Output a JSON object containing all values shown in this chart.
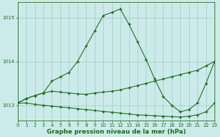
{
  "title": "Graphe pression niveau de la mer (hPa)",
  "xlim": [
    0,
    23
  ],
  "ylim": [
    1012.65,
    1015.35
  ],
  "yticks": [
    1013,
    1014,
    1015
  ],
  "xticks": [
    0,
    1,
    2,
    3,
    4,
    5,
    6,
    7,
    8,
    9,
    10,
    11,
    12,
    13,
    14,
    15,
    16,
    17,
    18,
    19,
    20,
    21,
    22,
    23
  ],
  "background_color": "#cceaea",
  "grid_color": "#99ccbb",
  "line_color": "#1a6b1a",
  "line1_y": [
    1013.05,
    1013.15,
    1013.22,
    1013.28,
    1013.55,
    1013.65,
    1013.75,
    1014.0,
    1014.35,
    1014.7,
    1015.05,
    1015.12,
    1015.2,
    1014.85,
    1014.45,
    1014.05,
    1013.6,
    1013.2,
    1013.0,
    1012.85,
    1012.9,
    1013.05,
    1013.5,
    1014.0
  ],
  "line2_y": [
    1013.05,
    1013.15,
    1013.22,
    1013.28,
    1013.32,
    1013.3,
    1013.28,
    1013.26,
    1013.25,
    1013.28,
    1013.3,
    1013.32,
    1013.35,
    1013.4,
    1013.45,
    1013.5,
    1013.55,
    1013.6,
    1013.65,
    1013.7,
    1013.75,
    1013.8,
    1013.9,
    1014.0
  ],
  "line3_y": [
    1013.05,
    1013.05,
    1013.02,
    1013.0,
    1012.98,
    1012.96,
    1012.94,
    1012.92,
    1012.9,
    1012.88,
    1012.86,
    1012.84,
    1012.82,
    1012.8,
    1012.78,
    1012.77,
    1012.76,
    1012.75,
    1012.74,
    1012.73,
    1012.75,
    1012.78,
    1012.85,
    1013.05
  ],
  "marker": "+",
  "markersize": 3.5,
  "markeredgewidth": 1.0,
  "linewidth": 0.8,
  "tick_fontsize": 5.0,
  "label_fontsize": 6.5,
  "label_fontweight": "bold"
}
